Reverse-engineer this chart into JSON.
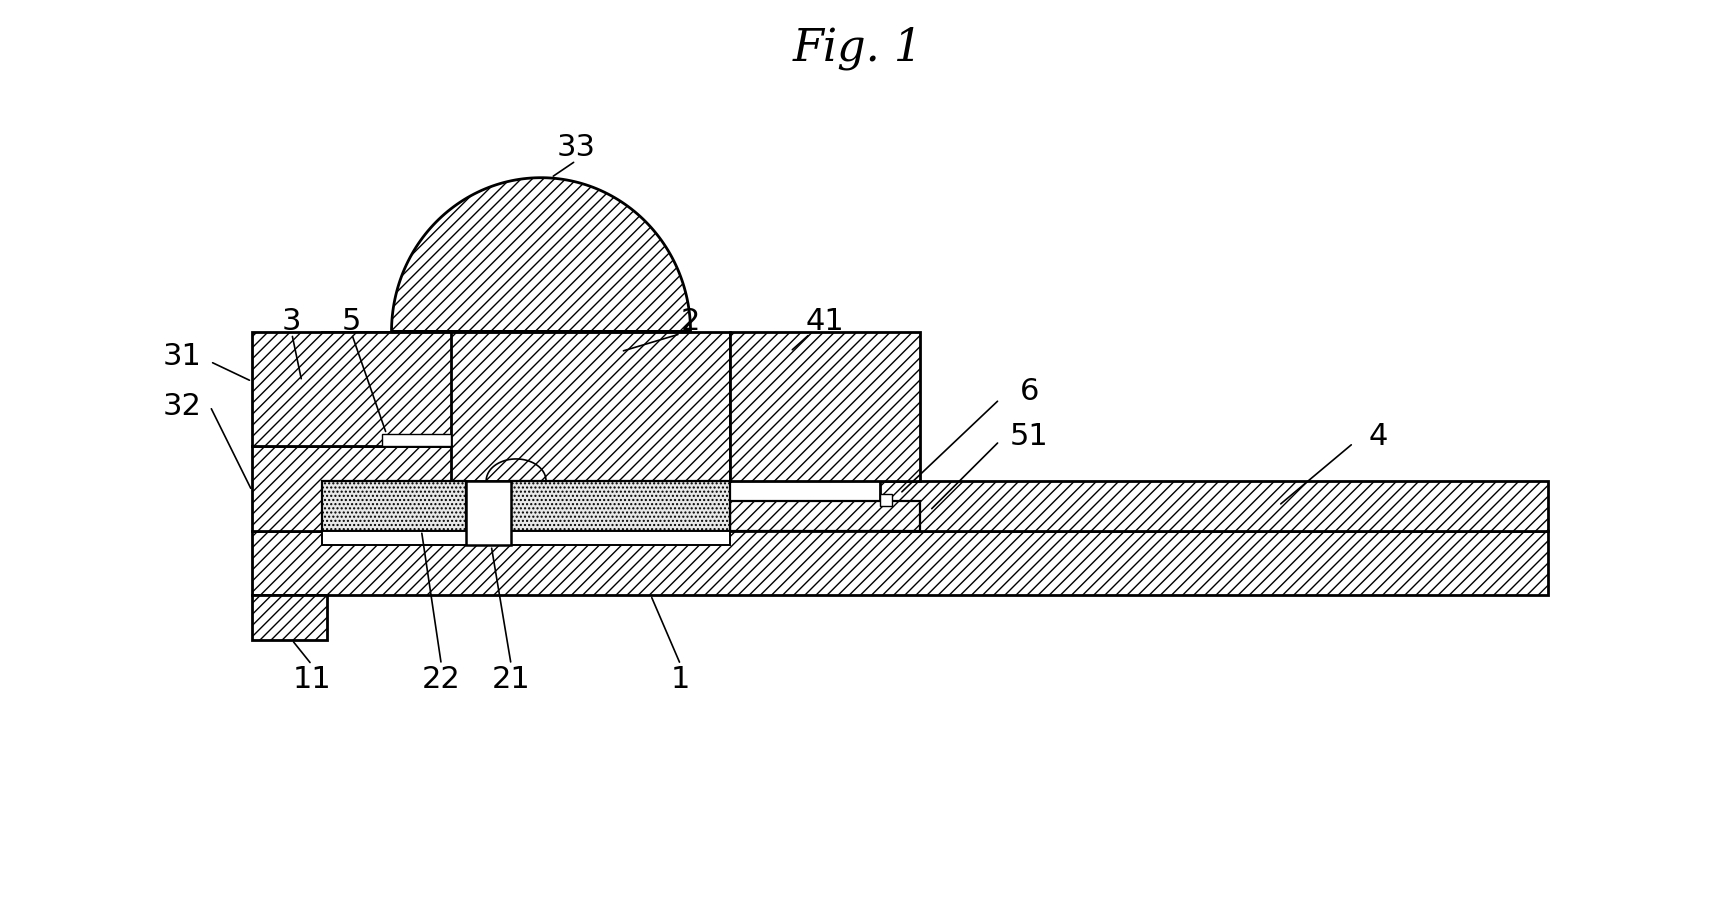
{
  "title": "Fig. 1",
  "title_fontsize": 32,
  "bg_color": "#ffffff",
  "lw": 2.0,
  "label_fontsize": 22
}
